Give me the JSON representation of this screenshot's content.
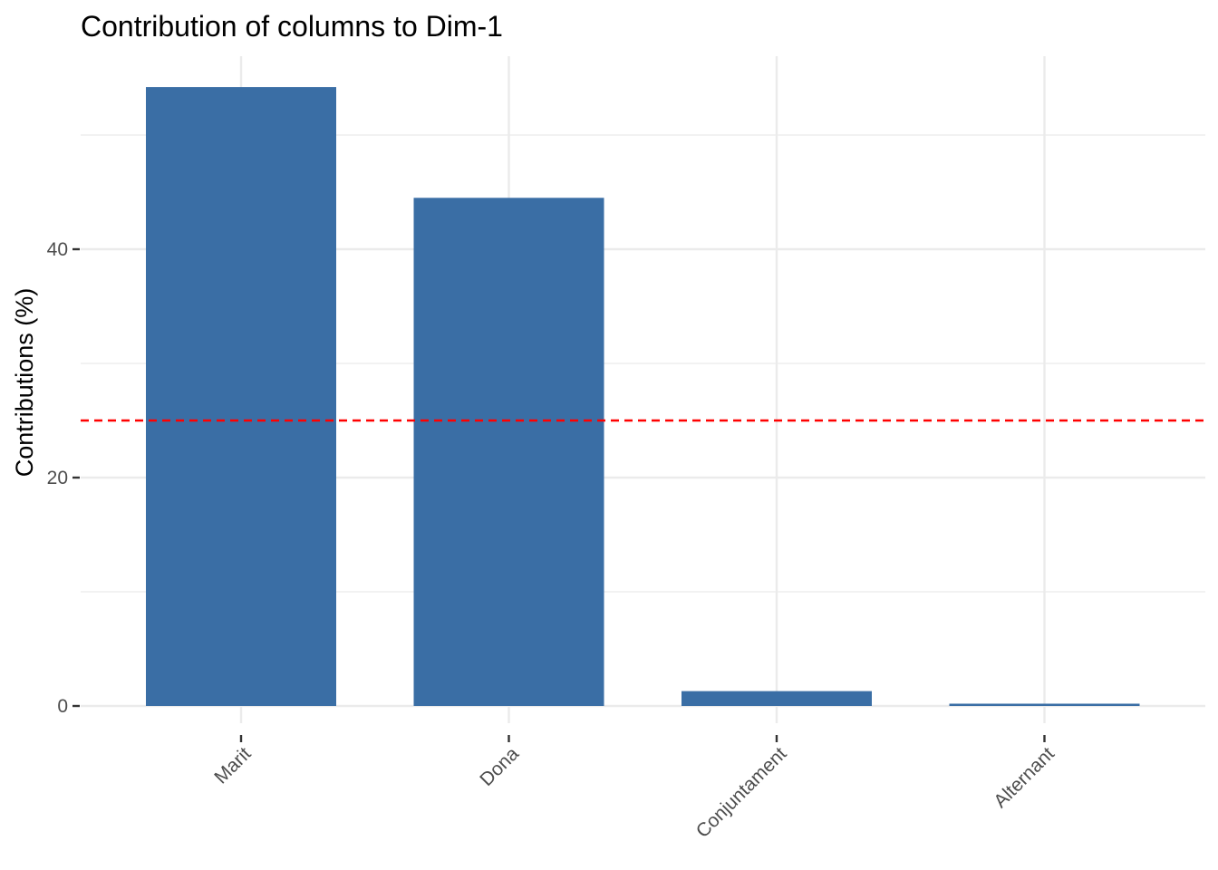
{
  "chart_data": {
    "type": "bar",
    "title": "Contribution of columns to Dim-1",
    "xlabel": "",
    "ylabel": "Contributions (%)",
    "categories": [
      "Marit",
      "Dona",
      "Conjuntament",
      "Alternant"
    ],
    "values": [
      54.2,
      44.5,
      1.3,
      0.2
    ],
    "ylim": [
      0,
      56
    ],
    "y_ticks": [
      0,
      20,
      40
    ],
    "y_tick_labels": [
      "0",
      "20",
      "40"
    ],
    "reference_line": {
      "value": 25,
      "style": "dashed",
      "color": "#FF0000"
    },
    "bar_color": "#3A6EA5",
    "grid": true,
    "grid_color": "#EBEBEB",
    "legend": "none"
  }
}
